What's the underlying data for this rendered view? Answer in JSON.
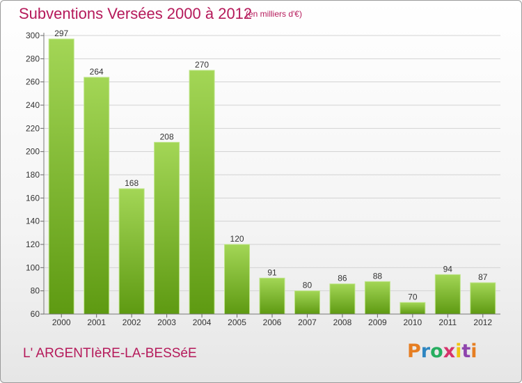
{
  "header": {
    "title": "Subventions Versées 2000 à 2012",
    "subtitle": "(en milliers d'€)"
  },
  "footer": {
    "commune": "L' ARGENTIèRE-LA-BESSéE",
    "logo": "Proxiti"
  },
  "colors": {
    "title": "#b5195a",
    "bar_top": "#9fd24f",
    "bar_bottom": "#5e9a12",
    "grid": "#d0d0d0"
  },
  "chart_data": {
    "type": "bar",
    "title": "Subventions Versées 2000 à 2012",
    "subtitle": "(en milliers d'€)",
    "categories": [
      "2000",
      "2001",
      "2002",
      "2003",
      "2004",
      "2005",
      "2006",
      "2007",
      "2008",
      "2009",
      "2010",
      "2011",
      "2012"
    ],
    "values": [
      297,
      264,
      168,
      208,
      270,
      120,
      91,
      80,
      86,
      88,
      70,
      94,
      87
    ],
    "ylim": [
      60,
      300
    ],
    "yticks": [
      60,
      80,
      100,
      120,
      140,
      160,
      180,
      200,
      220,
      240,
      260,
      280,
      300
    ],
    "grid": true,
    "xlabel": "",
    "ylabel": ""
  }
}
